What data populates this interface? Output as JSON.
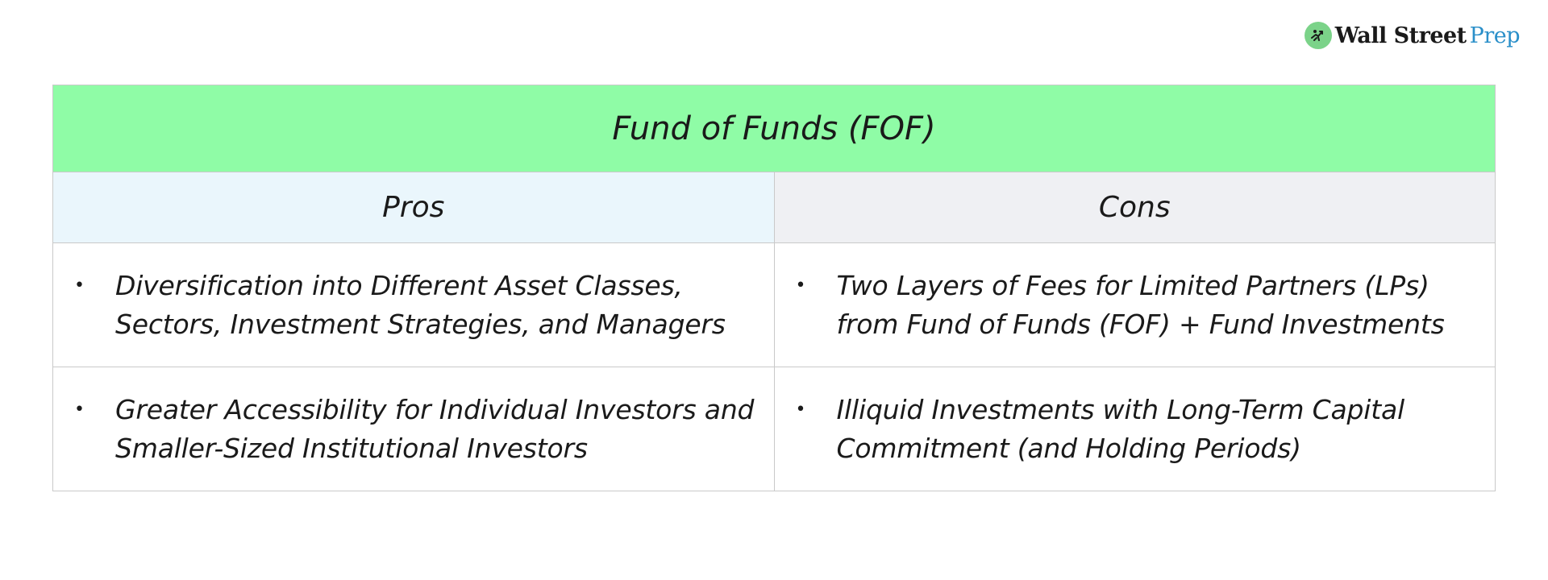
{
  "logo": {
    "brand_part1": "Wall Street",
    "brand_part2": "Prep",
    "icon": "bull-logo-icon",
    "accent_color": "#2a8fc9",
    "mark_color": "#7bd389"
  },
  "table": {
    "title": "Fund of Funds (FOF)",
    "title_bg": "#8ffca6",
    "pros_header": "Pros",
    "cons_header": "Cons",
    "pros_bg": "#eaf6fc",
    "cons_bg": "#eff0f3",
    "bullet": "•",
    "rows": [
      {
        "pro": "Diversification into Different Asset Classes, Sectors, Investment Strategies, and Managers",
        "con": "Two Layers of Fees for Limited Partners (LPs) from Fund of Funds (FOF) + Fund Investments"
      },
      {
        "pro": "Greater Accessibility for Individual Investors and Smaller-Sized Institutional Investors",
        "con": "Illiquid Investments with Long-Term Capital Commitment (and Holding Periods)"
      }
    ]
  }
}
